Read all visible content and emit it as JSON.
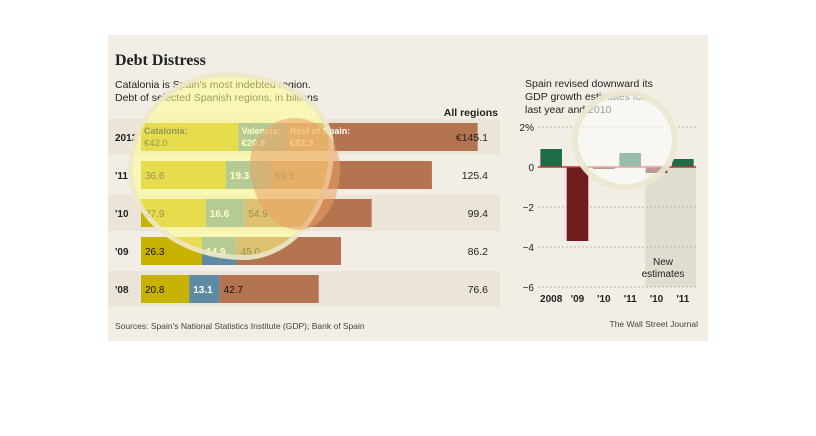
{
  "title": "Debt Distress",
  "subtitle_lines": [
    "Catalonia is Spain's most indebted region.",
    "Debt of selected Spanish regions, in billions"
  ],
  "source": "Sources: Spain's National Statistics Institute (GDP); Bank of Spain",
  "credit": "The Wall Street Journal",
  "colors": {
    "catalonia": "#c8b200",
    "valencia": "#5e8aa3",
    "rest": "#b3744f",
    "positive": "#1f6b4a",
    "negative": "#6e1c1c",
    "highlight_yellow": "#fff65a",
    "highlight_blue": "#9fd8f0",
    "highlight_orange": "#e9a36b",
    "estimates_band": "#e1dcd1"
  },
  "chart_data": [
    {
      "type": "bar",
      "orientation": "horizontal-stacked",
      "title": "Debt Distress",
      "subtitle": "Catalonia is Spain's most indebted region. Debt of selected Spanish regions, in billions",
      "total_header": "All regions",
      "categories": [
        "2012",
        "'11",
        "'10",
        "'09",
        "'08"
      ],
      "series": [
        {
          "name": "Catalonia",
          "values": [
            42.0,
            36.6,
            27.9,
            26.3,
            20.8
          ],
          "labels": [
            "€42.0",
            "36.6",
            "27.9",
            "26.3",
            "20.8"
          ]
        },
        {
          "name": "Valencia",
          "values": [
            20.8,
            19.3,
            16.6,
            14.9,
            13.1
          ],
          "labels": [
            "€20.8",
            "19.3",
            "16.6",
            "14.9",
            "13.1"
          ]
        },
        {
          "name": "Rest of Spain",
          "values": [
            82.3,
            69.5,
            54.9,
            45.0,
            42.7
          ],
          "labels": [
            "€82.3",
            "69.5",
            "54.9",
            "45.0",
            "42.7"
          ]
        }
      ],
      "first_row_series_labels": [
        "Catalonia:",
        "Valencia:",
        "Rest of Spain:"
      ],
      "totals": [
        "€145.1",
        "125.4",
        "99.4",
        "86.2",
        "76.6"
      ],
      "total_values": [
        145.1,
        125.4,
        99.4,
        86.2,
        76.6
      ]
    },
    {
      "type": "bar",
      "title": "Spain revised downward its GDP growth estimates for last year and 2010",
      "title_lines": [
        "Spain revised downward its",
        "GDP growth estimates for",
        "last year and 2010"
      ],
      "categories": [
        "2008",
        "'09",
        "'10",
        "'11",
        "'10",
        "'11"
      ],
      "values": [
        0.9,
        -3.7,
        -0.1,
        0.7,
        -0.3,
        0.4
      ],
      "ylim": [
        -6,
        2
      ],
      "yticks": [
        2,
        0,
        -2,
        -4,
        -6
      ],
      "ytick_labels": [
        "2%",
        "0",
        "−2",
        "−4",
        "−6"
      ],
      "annotation_lines": [
        "New",
        "estimates"
      ],
      "estimate_categories": [
        4,
        5
      ],
      "grid": true
    }
  ]
}
